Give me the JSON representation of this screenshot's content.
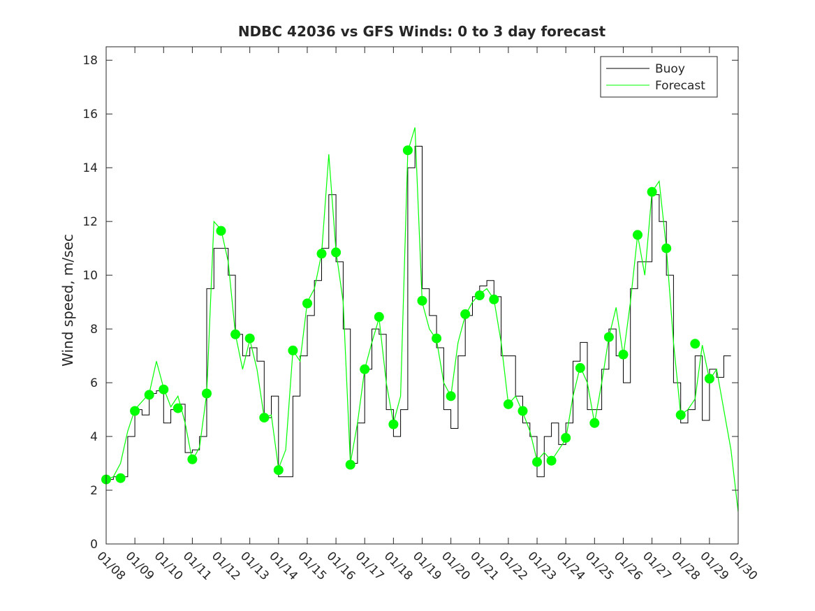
{
  "chart_data": {
    "type": "line",
    "title": "NDBC 42036 vs GFS Winds: 0 to 3 day forecast",
    "xlabel": "",
    "ylabel": "Wind speed, m/sec",
    "xlim": [
      0,
      22
    ],
    "ylim": [
      0,
      18.5
    ],
    "grid": false,
    "legend_position": "top-right",
    "x_ticks": [
      0,
      1,
      2,
      3,
      4,
      5,
      6,
      7,
      8,
      9,
      10,
      11,
      12,
      13,
      14,
      15,
      16,
      17,
      18,
      19,
      20,
      21,
      22
    ],
    "x_tick_labels": [
      "01/08",
      "01/09",
      "01/10",
      "01/11",
      "01/12",
      "01/13",
      "01/14",
      "01/15",
      "01/16",
      "01/17",
      "01/18",
      "01/19",
      "01/20",
      "01/21",
      "01/22",
      "01/23",
      "01/24",
      "01/25",
      "01/26",
      "01/27",
      "01/28",
      "01/29",
      "01/30"
    ],
    "y_ticks": [
      0,
      2,
      4,
      6,
      8,
      10,
      12,
      14,
      16,
      18
    ],
    "y_tick_labels": [
      "0",
      "2",
      "4",
      "6",
      "8",
      "10",
      "12",
      "14",
      "16",
      "18"
    ],
    "colors": {
      "buoy": "#000000",
      "forecast": "#00ff00"
    },
    "series": [
      {
        "name": "Buoy",
        "style": "stairs",
        "points": [
          [
            0,
            2.4
          ],
          [
            0.25,
            2.5
          ],
          [
            0.5,
            2.5
          ],
          [
            0.75,
            4
          ],
          [
            1,
            5
          ],
          [
            1.25,
            4.8
          ],
          [
            1.5,
            5.6
          ],
          [
            1.75,
            5.7
          ],
          [
            2,
            4.5
          ],
          [
            2.25,
            5
          ],
          [
            2.5,
            5.2
          ],
          [
            2.75,
            3.4
          ],
          [
            3,
            3.5
          ],
          [
            3.25,
            4
          ],
          [
            3.5,
            9.5
          ],
          [
            3.75,
            11
          ],
          [
            4,
            11
          ],
          [
            4.25,
            10
          ],
          [
            4.5,
            7.8
          ],
          [
            4.75,
            7
          ],
          [
            5,
            7.3
          ],
          [
            5.25,
            6.8
          ],
          [
            5.5,
            4.7
          ],
          [
            5.75,
            5.5
          ],
          [
            6,
            2.5
          ],
          [
            6.25,
            2.5
          ],
          [
            6.5,
            5.5
          ],
          [
            6.75,
            7
          ],
          [
            7,
            8.5
          ],
          [
            7.25,
            9.8
          ],
          [
            7.5,
            11
          ],
          [
            7.75,
            13
          ],
          [
            8,
            10.5
          ],
          [
            8.25,
            8
          ],
          [
            8.5,
            3
          ],
          [
            8.75,
            4.5
          ],
          [
            9,
            6.5
          ],
          [
            9.25,
            8
          ],
          [
            9.5,
            7.8
          ],
          [
            9.75,
            5
          ],
          [
            10,
            4
          ],
          [
            10.25,
            5
          ],
          [
            10.5,
            14
          ],
          [
            10.75,
            14.8
          ],
          [
            11,
            9.5
          ],
          [
            11.25,
            8.5
          ],
          [
            11.5,
            7.3
          ],
          [
            11.75,
            5
          ],
          [
            12,
            4.3
          ],
          [
            12.25,
            7
          ],
          [
            12.5,
            8.5
          ],
          [
            12.75,
            9.2
          ],
          [
            13,
            9.6
          ],
          [
            13.25,
            9.8
          ],
          [
            13.5,
            9.2
          ],
          [
            13.75,
            7
          ],
          [
            14,
            7
          ],
          [
            14.25,
            5.5
          ],
          [
            14.5,
            4.5
          ],
          [
            14.75,
            4
          ],
          [
            15,
            2.5
          ],
          [
            15.25,
            4
          ],
          [
            15.5,
            4.5
          ],
          [
            15.75,
            3.7
          ],
          [
            16,
            4.5
          ],
          [
            16.25,
            6.8
          ],
          [
            16.5,
            7.5
          ],
          [
            16.75,
            5
          ],
          [
            17,
            5
          ],
          [
            17.25,
            6.5
          ],
          [
            17.5,
            8
          ],
          [
            17.75,
            7
          ],
          [
            18,
            6
          ],
          [
            18.25,
            9.5
          ],
          [
            18.5,
            10.5
          ],
          [
            18.75,
            10.5
          ],
          [
            19,
            13
          ],
          [
            19.25,
            12
          ],
          [
            19.5,
            10
          ],
          [
            19.75,
            6
          ],
          [
            20,
            4.5
          ],
          [
            20.25,
            5
          ],
          [
            20.5,
            7
          ],
          [
            20.75,
            4.6
          ],
          [
            21,
            6.5
          ],
          [
            21.25,
            6.2
          ],
          [
            21.5,
            7
          ]
        ]
      },
      {
        "name": "Forecast",
        "style": "line",
        "points": [
          [
            0,
            2.4
          ],
          [
            0.25,
            2.5
          ],
          [
            0.5,
            3
          ],
          [
            0.75,
            4.2
          ],
          [
            1,
            5
          ],
          [
            1.25,
            5.3
          ],
          [
            1.5,
            5.6
          ],
          [
            1.75,
            6.8
          ],
          [
            2,
            5.8
          ],
          [
            2.25,
            5.1
          ],
          [
            2.5,
            5.5
          ],
          [
            2.75,
            4.5
          ],
          [
            3,
            3.1
          ],
          [
            3.25,
            3.6
          ],
          [
            3.5,
            5.6
          ],
          [
            3.75,
            12
          ],
          [
            4,
            11.7
          ],
          [
            4.25,
            10.5
          ],
          [
            4.5,
            7.8
          ],
          [
            4.75,
            6.5
          ],
          [
            5,
            7.6
          ],
          [
            5.25,
            6.5
          ],
          [
            5.5,
            4.7
          ],
          [
            5.75,
            4.8
          ],
          [
            6,
            2.8
          ],
          [
            6.25,
            3.5
          ],
          [
            6.5,
            7.2
          ],
          [
            6.75,
            6.8
          ],
          [
            7,
            9
          ],
          [
            7.25,
            9.5
          ],
          [
            7.5,
            10.8
          ],
          [
            7.75,
            14.5
          ],
          [
            8,
            10.9
          ],
          [
            8.25,
            9
          ],
          [
            8.5,
            3
          ],
          [
            8.75,
            4.5
          ],
          [
            9,
            6.5
          ],
          [
            9.25,
            7.5
          ],
          [
            9.5,
            8.4
          ],
          [
            9.75,
            6
          ],
          [
            10,
            4.5
          ],
          [
            10.25,
            5.5
          ],
          [
            10.5,
            14.6
          ],
          [
            10.75,
            15.5
          ],
          [
            11,
            9
          ],
          [
            11.25,
            8
          ],
          [
            11.5,
            7.6
          ],
          [
            11.75,
            6
          ],
          [
            12,
            5.5
          ],
          [
            12.25,
            7.5
          ],
          [
            12.5,
            8.5
          ],
          [
            12.75,
            9
          ],
          [
            13,
            9.3
          ],
          [
            13.25,
            9.5
          ],
          [
            13.5,
            9.1
          ],
          [
            13.75,
            7.5
          ],
          [
            14,
            5.2
          ],
          [
            14.25,
            5.5
          ],
          [
            14.5,
            4.9
          ],
          [
            14.75,
            4.2
          ],
          [
            15,
            3.1
          ],
          [
            15.25,
            3.4
          ],
          [
            15.5,
            3.1
          ],
          [
            15.75,
            3.5
          ],
          [
            16,
            3.9
          ],
          [
            16.25,
            5.5
          ],
          [
            16.5,
            6.6
          ],
          [
            16.75,
            6
          ],
          [
            17,
            4.5
          ],
          [
            17.25,
            6
          ],
          [
            17.5,
            7.7
          ],
          [
            17.75,
            8.8
          ],
          [
            18,
            7
          ],
          [
            18.25,
            9
          ],
          [
            18.5,
            11.5
          ],
          [
            18.75,
            10
          ],
          [
            19,
            13.1
          ],
          [
            19.25,
            13.5
          ],
          [
            19.5,
            11
          ],
          [
            19.75,
            7.5
          ],
          [
            20,
            4.8
          ],
          [
            20.25,
            5
          ],
          [
            20.5,
            5.4
          ],
          [
            20.75,
            7.4
          ],
          [
            21,
            6.1
          ],
          [
            21.25,
            6.5
          ],
          [
            21.5,
            5
          ],
          [
            21.75,
            3.5
          ],
          [
            22,
            1.2
          ]
        ]
      }
    ],
    "forecast_markers": [
      [
        0,
        2.4
      ],
      [
        0.5,
        2.45
      ],
      [
        1,
        4.95
      ],
      [
        1.5,
        5.55
      ],
      [
        2,
        5.75
      ],
      [
        2.5,
        5.05
      ],
      [
        3,
        3.15
      ],
      [
        3.5,
        5.6
      ],
      [
        4,
        11.65
      ],
      [
        4.5,
        7.8
      ],
      [
        5,
        7.65
      ],
      [
        5.5,
        4.7
      ],
      [
        6,
        2.75
      ],
      [
        6.5,
        7.2
      ],
      [
        7,
        8.95
      ],
      [
        7.5,
        10.8
      ],
      [
        8,
        10.85
      ],
      [
        8.5,
        2.95
      ],
      [
        9,
        6.5
      ],
      [
        9.5,
        8.45
      ],
      [
        10,
        4.45
      ],
      [
        10.5,
        14.65
      ],
      [
        11,
        9.05
      ],
      [
        11.5,
        7.65
      ],
      [
        12,
        5.5
      ],
      [
        12.5,
        8.55
      ],
      [
        13,
        9.25
      ],
      [
        13.5,
        9.1
      ],
      [
        14,
        5.2
      ],
      [
        14.5,
        4.95
      ],
      [
        15,
        3.05
      ],
      [
        15.5,
        3.1
      ],
      [
        16,
        3.95
      ],
      [
        16.5,
        6.55
      ],
      [
        17,
        4.5
      ],
      [
        17.5,
        7.7
      ],
      [
        18,
        7.05
      ],
      [
        18.5,
        11.5
      ],
      [
        19,
        13.1
      ],
      [
        19.5,
        11
      ],
      [
        20,
        4.8
      ],
      [
        20.5,
        7.45
      ],
      [
        21,
        6.15
      ]
    ]
  }
}
